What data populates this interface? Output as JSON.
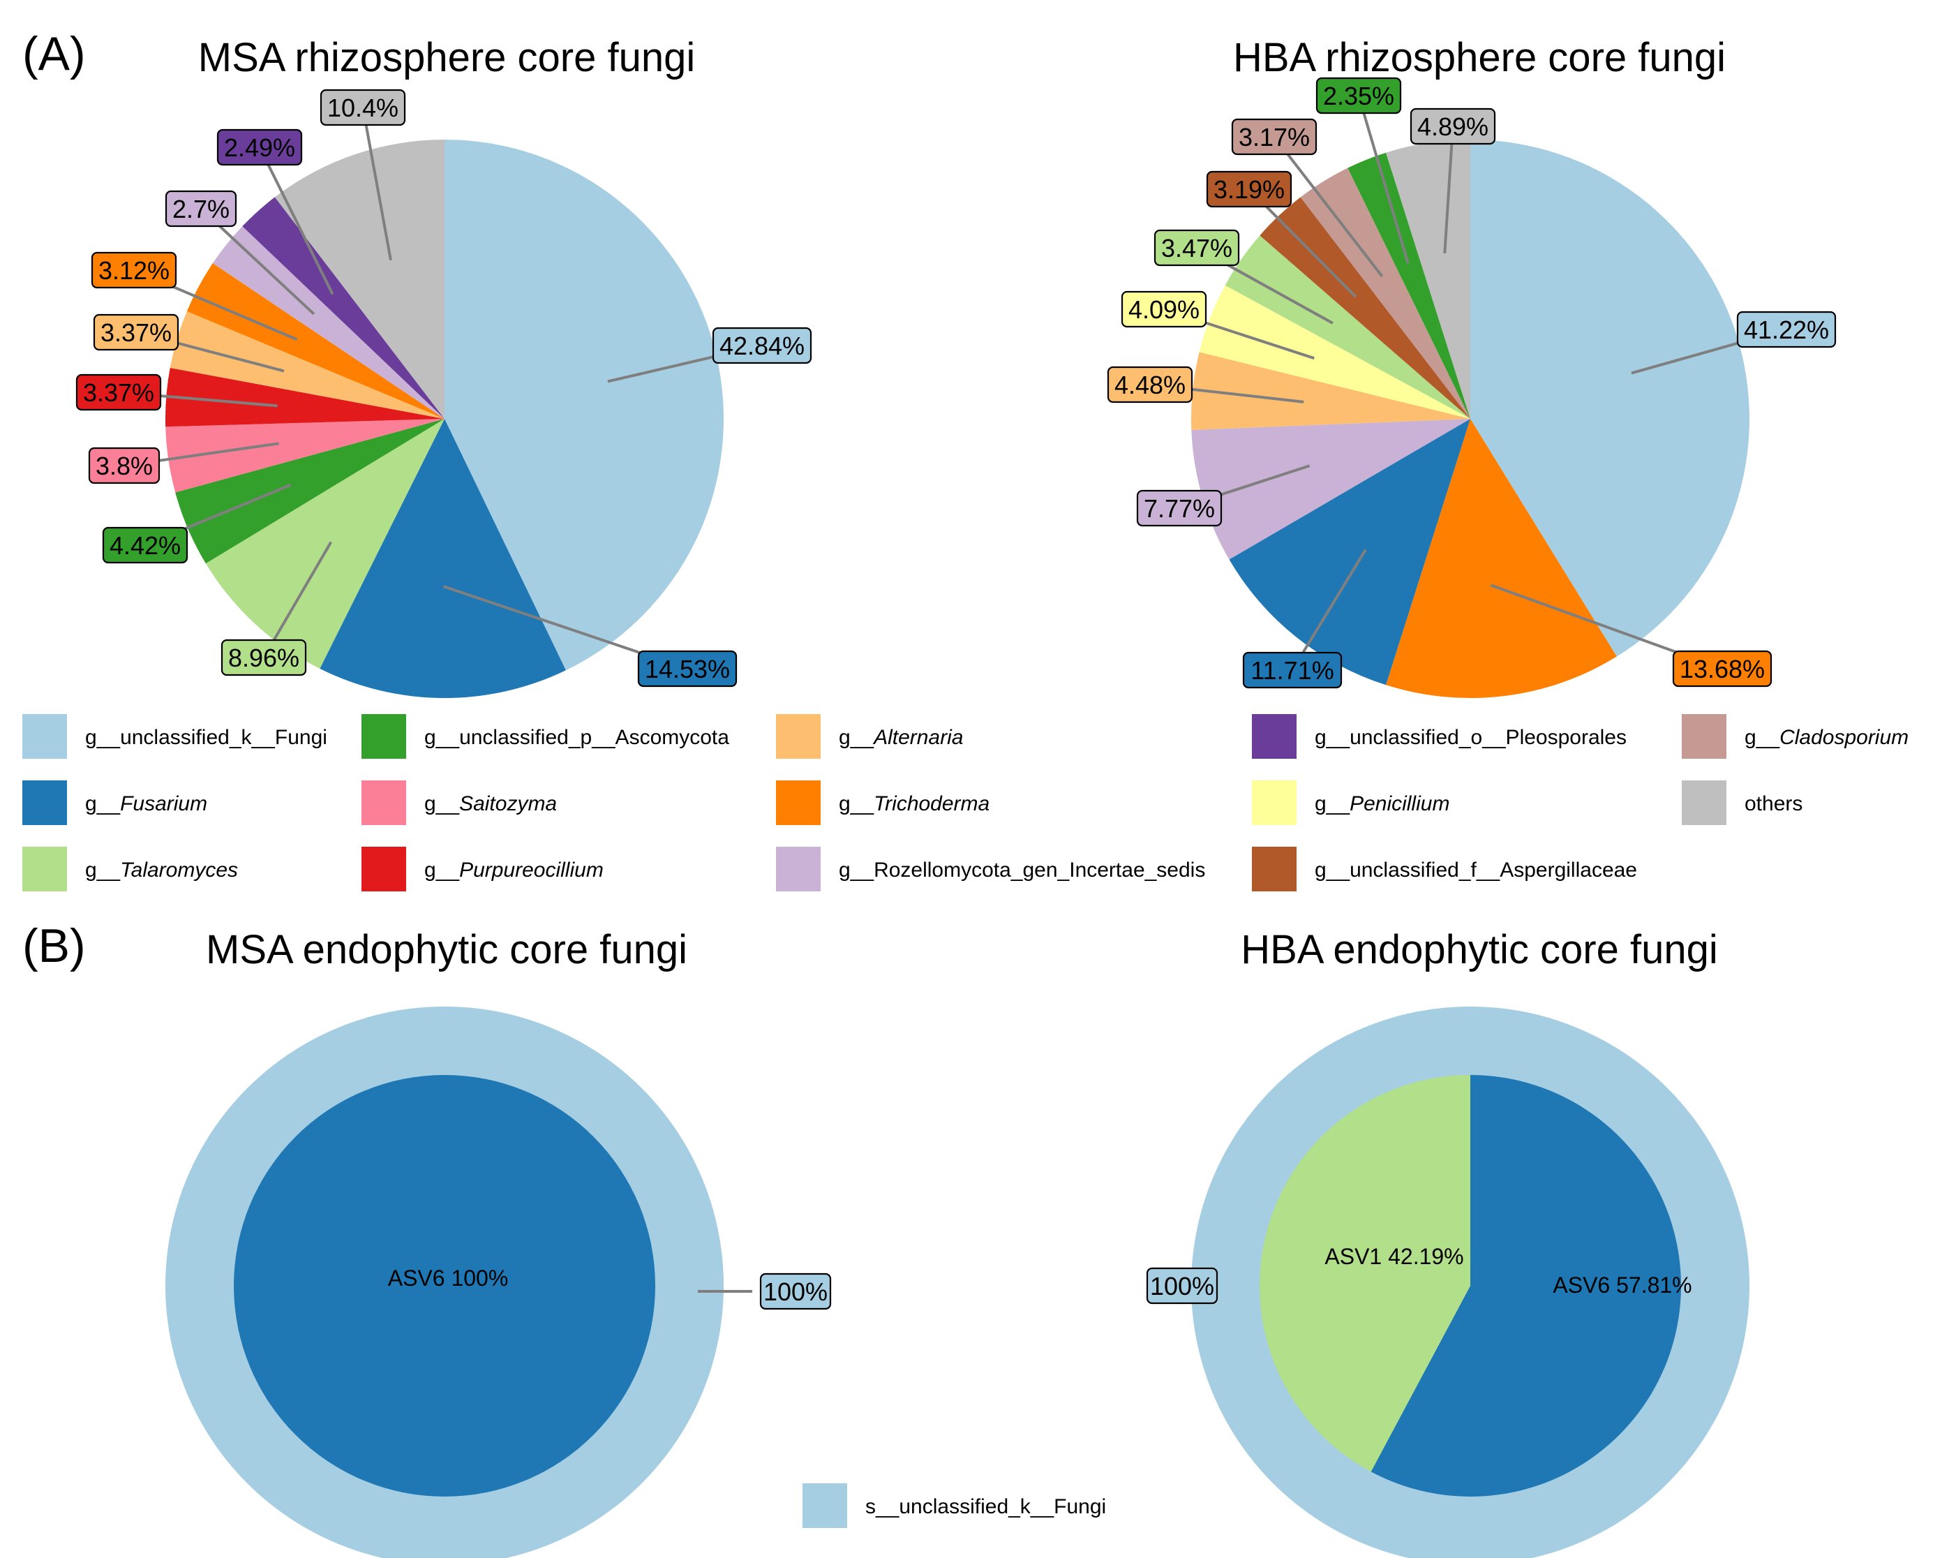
{
  "colors": {
    "unclassified_k_Fungi": "#a6cee3",
    "Fusarium": "#1f78b4",
    "Talaromyces": "#b2df8a",
    "unclassified_p_Ascomycota": "#33a02c",
    "Saitozyma": "#fb7f97",
    "Purpureocillium": "#e31a1c",
    "Alternaria": "#fdbf6f",
    "Trichoderma": "#ff7f00",
    "Rozellomycota_gen_Incertae_sedis": "#cab2d6",
    "unclassified_o_Pleosporales": "#6a3d9a",
    "Penicillium": "#ffff99",
    "unclassified_f_Aspergillaceae": "#b15928",
    "Cladosporium": "#c49a92",
    "others": "#bfbfbf",
    "leader_line": "#7f7f7f"
  },
  "panels": {
    "a": "(A)",
    "b": "(B)"
  },
  "chart_data": [
    {
      "type": "pie",
      "title": "MSA rhizosphere core fungi",
      "categories": [
        "g__unclassified_k__Fungi",
        "g__Fusarium",
        "g__Talaromyces",
        "g__unclassified_p__Ascomycota",
        "g__Saitozyma",
        "g__Purpureocillium",
        "g__Alternaria",
        "g__Trichoderma",
        "g__Rozellomycota_gen_Incertae_sedis",
        "g__unclassified_o__Pleosporales",
        "others"
      ],
      "keys": [
        "unclassified_k_Fungi",
        "Fusarium",
        "Talaromyces",
        "unclassified_p_Ascomycota",
        "Saitozyma",
        "Purpureocillium",
        "Alternaria",
        "Trichoderma",
        "Rozellomycota_gen_Incertae_sedis",
        "unclassified_o_Pleosporales",
        "others"
      ],
      "values": [
        42.84,
        14.53,
        8.96,
        4.42,
        3.8,
        3.37,
        3.37,
        3.12,
        2.7,
        2.49,
        10.4
      ],
      "labels": [
        "42.84%",
        "14.53%",
        "8.96%",
        "4.42%",
        "3.8%",
        "3.37%",
        "3.37%",
        "3.12%",
        "2.7%",
        "2.49%",
        "10.4%"
      ]
    },
    {
      "type": "pie",
      "title": "HBA rhizosphere core fungi",
      "categories": [
        "g__unclassified_k__Fungi",
        "g__Trichoderma",
        "g__Fusarium",
        "g__Rozellomycota_gen_Incertae_sedis",
        "g__Alternaria",
        "g__Penicillium",
        "g__Talaromyces",
        "g__unclassified_f__Aspergillaceae",
        "g__Cladosporium",
        "g__unclassified_p__Ascomycota",
        "others"
      ],
      "keys": [
        "unclassified_k_Fungi",
        "Trichoderma",
        "Fusarium",
        "Rozellomycota_gen_Incertae_sedis",
        "Alternaria",
        "Penicillium",
        "Talaromyces",
        "unclassified_f_Aspergillaceae",
        "Cladosporium",
        "unclassified_p_Ascomycota",
        "others"
      ],
      "values": [
        41.22,
        13.68,
        11.71,
        7.77,
        4.48,
        4.09,
        3.47,
        3.19,
        3.17,
        2.35,
        4.89
      ],
      "labels": [
        "41.22%",
        "13.68%",
        "11.71%",
        "7.77%",
        "4.48%",
        "4.09%",
        "3.47%",
        "3.19%",
        "3.17%",
        "2.35%",
        "4.89%"
      ]
    },
    {
      "type": "pie",
      "title": "MSA endophytic core fungi",
      "outer": {
        "category": "s__unclassified_k__Fungi",
        "key": "unclassified_k_Fungi",
        "value": 100,
        "label": "100%"
      },
      "inner": [
        {
          "name": "ASV6",
          "key": "Fusarium",
          "value": 100,
          "label": "ASV6 100%"
        }
      ]
    },
    {
      "type": "pie",
      "title": "HBA endophytic core fungi",
      "outer": {
        "category": "s__unclassified_k__Fungi",
        "key": "unclassified_k_Fungi",
        "value": 100,
        "label": "100%"
      },
      "inner": [
        {
          "name": "ASV6",
          "key": "Fusarium",
          "value": 57.81,
          "label": "ASV6  57.81%"
        },
        {
          "name": "ASV1",
          "key": "Talaromyces",
          "value": 42.19,
          "label": "ASV1  42.19%"
        }
      ]
    }
  ],
  "legend_a": [
    {
      "prefix": "g__",
      "name": "unclassified_k__Fungi",
      "italic": false,
      "key": "unclassified_k_Fungi"
    },
    {
      "prefix": "g__",
      "name": "Fusarium",
      "italic": true,
      "key": "Fusarium"
    },
    {
      "prefix": "g__",
      "name": "Talaromyces",
      "italic": true,
      "key": "Talaromyces"
    },
    {
      "prefix": "g__",
      "name": "unclassified_p__Ascomycota",
      "italic": false,
      "key": "unclassified_p_Ascomycota"
    },
    {
      "prefix": "g__",
      "name": "Saitozyma",
      "italic": true,
      "key": "Saitozyma"
    },
    {
      "prefix": "g__",
      "name": "Purpureocillium",
      "italic": true,
      "key": "Purpureocillium"
    },
    {
      "prefix": "g__",
      "name": "Alternaria",
      "italic": true,
      "key": "Alternaria"
    },
    {
      "prefix": "g__",
      "name": "Trichoderma",
      "italic": true,
      "key": "Trichoderma"
    },
    {
      "prefix": "g__",
      "name": "Rozellomycota_gen_Incertae_sedis",
      "italic": false,
      "key": "Rozellomycota_gen_Incertae_sedis"
    },
    {
      "prefix": "g__",
      "name": "unclassified_o__Pleosporales",
      "italic": false,
      "key": "unclassified_o_Pleosporales"
    },
    {
      "prefix": "g__",
      "name": "Penicillium",
      "italic": true,
      "key": "Penicillium"
    },
    {
      "prefix": "g__",
      "name": "unclassified_f__Aspergillaceae",
      "italic": false,
      "key": "unclassified_f_Aspergillaceae"
    },
    {
      "prefix": "g__",
      "name": "Cladosporium",
      "italic": true,
      "key": "Cladosporium"
    },
    {
      "prefix": "",
      "name": "others",
      "italic": false,
      "key": "others"
    }
  ],
  "legend_b": [
    {
      "prefix": "",
      "name": "s__unclassified_k__Fungi",
      "italic": false,
      "key": "unclassified_k_Fungi"
    }
  ]
}
